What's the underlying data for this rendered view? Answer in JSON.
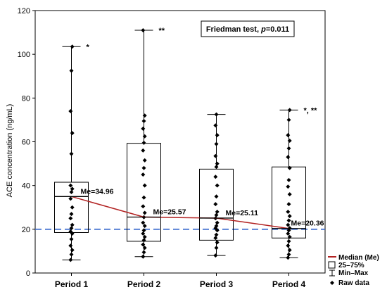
{
  "chart_data": {
    "type": "box",
    "ylabel": "ACE concentration (ng/mL)",
    "ylim": [
      0,
      120
    ],
    "yticks": [
      0,
      20,
      40,
      60,
      80,
      100,
      120
    ],
    "categories": [
      "Period 1",
      "Period 2",
      "Period 3",
      "Period 4"
    ],
    "boxes": [
      {
        "q1": 18.5,
        "q3": 41.5,
        "min": 6,
        "max": 103.5,
        "median": 34.96,
        "median_label": "Me=34.96",
        "marker": "*"
      },
      {
        "q1": 14.5,
        "q3": 59.3,
        "min": 7.5,
        "max": 111,
        "median": 25.57,
        "median_label": "Me=25.57",
        "marker": "**"
      },
      {
        "q1": 15,
        "q3": 47.5,
        "min": 8,
        "max": 72.5,
        "median": 25.11,
        "median_label": "Me=25.11",
        "marker": ""
      },
      {
        "q1": 16,
        "q3": 48.5,
        "min": 7,
        "max": 74.5,
        "median": 20.36,
        "median_label": "Me=20.36",
        "marker": "*, **"
      }
    ],
    "raw_data": [
      [
        6,
        8.5,
        10.5,
        12.5,
        15.5,
        18,
        19,
        20.5,
        22,
        25,
        27,
        30,
        34,
        37,
        38.5,
        40,
        54.5,
        64,
        74,
        92.5,
        103.5
      ],
      [
        7.5,
        9.5,
        11.5,
        13,
        15,
        16.5,
        18,
        19.5,
        21.5,
        23,
        25.5,
        27.5,
        30.5,
        34.5,
        40,
        45,
        48,
        51.5,
        56,
        59.5,
        62.5,
        66,
        69.5,
        72,
        111
      ],
      [
        8,
        11.5,
        14,
        16,
        17.5,
        19.5,
        20.5,
        21.5,
        23,
        25,
        26.5,
        28,
        31.5,
        35,
        40,
        44,
        48.5,
        50,
        53.5,
        59,
        63,
        67.5,
        72.5
      ],
      [
        7,
        8.5,
        10.5,
        12.5,
        14.5,
        16.5,
        18,
        19.5,
        20.5,
        22,
        24,
        26,
        28,
        31.5,
        36,
        39.5,
        42.5,
        48,
        53,
        57,
        60.5,
        63,
        70,
        74.5
      ]
    ],
    "trend_line": {
      "name": "Median (Me)",
      "values": [
        34.96,
        25.57,
        25.11,
        20.36
      ],
      "color": "#b22222"
    },
    "reference_line": {
      "value": 20,
      "color": "#3366cc"
    },
    "test_annotation": {
      "prefix": "Friedman test, ",
      "stat": "p",
      "suffix": "=0.011"
    },
    "legend": {
      "position": "bottom-right",
      "items": [
        "Median (Me)",
        "25–75%",
        "Min–Max",
        "Raw data"
      ]
    },
    "grid": false
  }
}
